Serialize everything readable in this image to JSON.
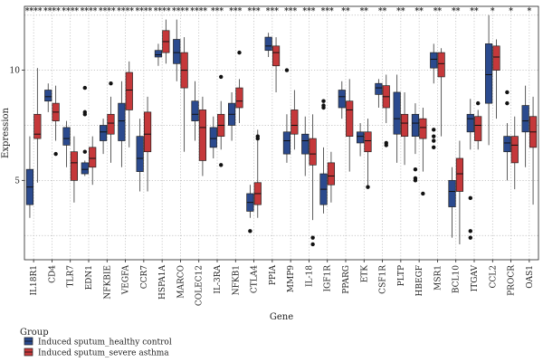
{
  "chart_data": {
    "type": "box",
    "title": "",
    "xlabel": "Gene",
    "ylabel": "Expression",
    "ylim": [
      1.4,
      12.9
    ],
    "yticks": [
      5,
      10
    ],
    "grid": true,
    "legend": {
      "title": "Group",
      "placement": "bottom-left",
      "entries": [
        {
          "name": "Induced sputum_healthy control",
          "color": "#2b4a8e"
        },
        {
          "name": "Induced sputum_severe asthma",
          "color": "#c5383a"
        }
      ]
    },
    "genes": [
      "IL18R1",
      "CD4",
      "TLR7",
      "EDN1",
      "NFKBIE",
      "VEGFA",
      "CCR7",
      "HSPA1A",
      "MARCO",
      "COLEC12",
      "IL-3RA",
      "NFKB1",
      "CTLA4",
      "PPIA",
      "MMP9",
      "IL-18",
      "IGF1R",
      "PPARG",
      "ETK",
      "CSF1R",
      "PLTP",
      "HBEGF",
      "MSR1",
      "BCL10",
      "ITGAV",
      "CCL2",
      "PROCR",
      "OAS1"
    ],
    "significance": [
      "****",
      "****",
      "****",
      "****",
      "****",
      "****",
      "****",
      "****",
      "****",
      "****",
      "***",
      "***",
      "***",
      "***",
      "***",
      "***",
      "***",
      "**",
      "**",
      "**",
      "**",
      "**",
      "**",
      "**",
      "**",
      "*",
      "*",
      "*"
    ],
    "series": [
      {
        "name": "Induced sputum_healthy control",
        "boxes": [
          {
            "min": 3.3,
            "q1": 3.9,
            "median": 4.7,
            "q3": 5.5,
            "max": 7.0,
            "outliers": []
          },
          {
            "min": 8.1,
            "q1": 8.6,
            "median": 8.8,
            "q3": 9.1,
            "max": 9.4,
            "outliers": []
          },
          {
            "min": 5.6,
            "q1": 6.6,
            "median": 6.9,
            "q3": 7.4,
            "max": 7.7,
            "outliers": []
          },
          {
            "min": 5.2,
            "q1": 5.3,
            "median": 5.5,
            "q3": 5.8,
            "max": 5.9,
            "outliers": [
              9.2,
              8.0,
              8.1,
              6.3
            ]
          },
          {
            "min": 6.2,
            "q1": 6.8,
            "median": 7.2,
            "q3": 7.5,
            "max": 7.8,
            "outliers": []
          },
          {
            "min": 5.6,
            "q1": 6.8,
            "median": 7.7,
            "q3": 8.5,
            "max": 9.5,
            "outliers": []
          },
          {
            "min": 4.5,
            "q1": 5.4,
            "median": 6.0,
            "q3": 7.0,
            "max": 7.8,
            "outliers": []
          },
          {
            "min": 10.2,
            "q1": 10.6,
            "median": 10.7,
            "q3": 10.9,
            "max": 11.2,
            "outliers": []
          },
          {
            "min": 9.5,
            "q1": 10.3,
            "median": 10.8,
            "q3": 11.4,
            "max": 12.3,
            "outliers": []
          },
          {
            "min": 6.8,
            "q1": 7.7,
            "median": 8.0,
            "q3": 8.6,
            "max": 9.5,
            "outliers": []
          },
          {
            "min": 6.0,
            "q1": 6.5,
            "median": 6.9,
            "q3": 7.4,
            "max": 7.9,
            "outliers": []
          },
          {
            "min": 6.8,
            "q1": 7.5,
            "median": 8.0,
            "q3": 8.5,
            "max": 9.0,
            "outliers": []
          },
          {
            "min": 3.3,
            "q1": 3.6,
            "median": 4.0,
            "q3": 4.4,
            "max": 4.8,
            "outliers": [
              2.7
            ]
          },
          {
            "min": 10.6,
            "q1": 10.9,
            "median": 11.1,
            "q3": 11.5,
            "max": 11.7,
            "outliers": []
          },
          {
            "min": 5.8,
            "q1": 6.2,
            "median": 6.8,
            "q3": 7.2,
            "max": 8.0,
            "outliers": [
              10.0
            ]
          },
          {
            "min": 5.2,
            "q1": 6.2,
            "median": 6.8,
            "q3": 7.1,
            "max": 7.9,
            "outliers": []
          },
          {
            "min": 3.5,
            "q1": 3.9,
            "median": 4.6,
            "q3": 5.3,
            "max": 6.5,
            "outliers": [
              8.6,
              8.3,
              8.4
            ]
          },
          {
            "min": 7.8,
            "q1": 8.3,
            "median": 8.8,
            "q3": 9.1,
            "max": 9.5,
            "outliers": []
          },
          {
            "min": 6.1,
            "q1": 6.7,
            "median": 7.0,
            "q3": 7.2,
            "max": 7.6,
            "outliers": []
          },
          {
            "min": 8.3,
            "q1": 8.9,
            "median": 9.2,
            "q3": 9.4,
            "max": 9.6,
            "outliers": []
          },
          {
            "min": 5.8,
            "q1": 7.1,
            "median": 7.8,
            "q3": 9.0,
            "max": 9.8,
            "outliers": []
          },
          {
            "min": 6.2,
            "q1": 7.0,
            "median": 7.6,
            "q3": 8.0,
            "max": 8.5,
            "outliers": [
              5.5,
              5.1,
              5.0
            ]
          },
          {
            "min": 9.4,
            "q1": 10.1,
            "median": 10.5,
            "q3": 10.8,
            "max": 11.2,
            "outliers": [
              7.3,
              7.0,
              6.8,
              6.5
            ]
          },
          {
            "min": 2.4,
            "q1": 3.8,
            "median": 4.5,
            "q3": 5.0,
            "max": 5.6,
            "outliers": []
          },
          {
            "min": 6.4,
            "q1": 7.2,
            "median": 7.8,
            "q3": 8.0,
            "max": 8.7,
            "outliers": [
              4.2,
              2.7,
              2.4
            ]
          },
          {
            "min": 6.6,
            "q1": 8.5,
            "median": 9.8,
            "q3": 11.2,
            "max": 12.5,
            "outliers": []
          },
          {
            "min": 5.0,
            "q1": 6.3,
            "median": 6.7,
            "q3": 7.0,
            "max": 7.6,
            "outliers": [
              9.0,
              8.5
            ]
          },
          {
            "min": 5.6,
            "q1": 7.2,
            "median": 7.7,
            "q3": 8.4,
            "max": 9.3,
            "outliers": []
          }
        ]
      },
      {
        "name": "Induced sputum_severe asthma",
        "boxes": [
          {
            "min": 4.9,
            "q1": 6.9,
            "median": 7.1,
            "q3": 8.0,
            "max": 10.1,
            "outliers": []
          },
          {
            "min": 6.8,
            "q1": 7.7,
            "median": 8.1,
            "q3": 8.5,
            "max": 9.3,
            "outliers": [
              6.2
            ]
          },
          {
            "min": 4.0,
            "q1": 5.0,
            "median": 5.8,
            "q3": 6.3,
            "max": 7.0,
            "outliers": []
          },
          {
            "min": 4.8,
            "q1": 5.6,
            "median": 6.0,
            "q3": 6.5,
            "max": 7.0,
            "outliers": []
          },
          {
            "min": 5.8,
            "q1": 7.1,
            "median": 7.6,
            "q3": 8.0,
            "max": 8.8,
            "outliers": [
              9.4
            ]
          },
          {
            "min": 6.5,
            "q1": 8.2,
            "median": 9.1,
            "q3": 9.9,
            "max": 10.4,
            "outliers": []
          },
          {
            "min": 4.5,
            "q1": 6.3,
            "median": 7.1,
            "q3": 8.1,
            "max": 8.8,
            "outliers": []
          },
          {
            "min": 10.3,
            "q1": 10.8,
            "median": 11.3,
            "q3": 11.8,
            "max": 12.3,
            "outliers": []
          },
          {
            "min": 6.3,
            "q1": 9.2,
            "median": 10.0,
            "q3": 10.8,
            "max": 11.5,
            "outliers": []
          },
          {
            "min": 5.2,
            "q1": 5.9,
            "median": 7.4,
            "q3": 8.2,
            "max": 8.8,
            "outliers": []
          },
          {
            "min": 6.4,
            "q1": 7.0,
            "median": 7.5,
            "q3": 8.0,
            "max": 8.6,
            "outliers": [
              5.7,
              9.7
            ]
          },
          {
            "min": 7.6,
            "q1": 8.3,
            "median": 8.6,
            "q3": 9.2,
            "max": 9.6,
            "outliers": [
              10.8
            ]
          },
          {
            "min": 3.3,
            "q1": 3.9,
            "median": 4.4,
            "q3": 4.9,
            "max": 7.3,
            "outliers": [
              6.9,
              7.0
            ]
          },
          {
            "min": 9.0,
            "q1": 10.2,
            "median": 10.8,
            "q3": 11.1,
            "max": 11.5,
            "outliers": []
          },
          {
            "min": 6.4,
            "q1": 7.1,
            "median": 7.5,
            "q3": 8.2,
            "max": 9.1,
            "outliers": []
          },
          {
            "min": 3.2,
            "q1": 5.7,
            "median": 6.2,
            "q3": 6.9,
            "max": 8.0,
            "outliers": [
              2.4,
              2.1
            ]
          },
          {
            "min": 4.0,
            "q1": 4.8,
            "median": 5.2,
            "q3": 5.8,
            "max": 6.3,
            "outliers": []
          },
          {
            "min": 5.4,
            "q1": 7.0,
            "median": 8.2,
            "q3": 8.6,
            "max": 9.6,
            "outliers": []
          },
          {
            "min": 4.7,
            "q1": 6.3,
            "median": 6.8,
            "q3": 7.2,
            "max": 7.8,
            "outliers": [
              4.7
            ]
          },
          {
            "min": 7.6,
            "q1": 8.3,
            "median": 8.8,
            "q3": 9.3,
            "max": 9.8,
            "outliers": [
              6.7,
              6.6
            ]
          },
          {
            "min": 5.7,
            "q1": 7.0,
            "median": 7.6,
            "q3": 8.0,
            "max": 9.0,
            "outliers": []
          },
          {
            "min": 5.4,
            "q1": 6.9,
            "median": 7.4,
            "q3": 7.8,
            "max": 8.3,
            "outliers": [
              4.4
            ]
          },
          {
            "min": 7.0,
            "q1": 9.7,
            "median": 10.3,
            "q3": 10.8,
            "max": 11.0,
            "outliers": []
          },
          {
            "min": 2.1,
            "q1": 4.5,
            "median": 5.3,
            "q3": 6.0,
            "max": 6.8,
            "outliers": []
          },
          {
            "min": 6.4,
            "q1": 6.8,
            "median": 7.5,
            "q3": 7.9,
            "max": 8.2,
            "outliers": [
              8.5
            ]
          },
          {
            "min": 7.8,
            "q1": 10.0,
            "median": 10.6,
            "q3": 11.1,
            "max": 11.4,
            "outliers": []
          },
          {
            "min": 4.6,
            "q1": 5.8,
            "median": 6.6,
            "q3": 7.0,
            "max": 7.9,
            "outliers": []
          },
          {
            "min": 3.9,
            "q1": 6.5,
            "median": 7.2,
            "q3": 7.9,
            "max": 8.8,
            "outliers": []
          }
        ]
      }
    ]
  }
}
